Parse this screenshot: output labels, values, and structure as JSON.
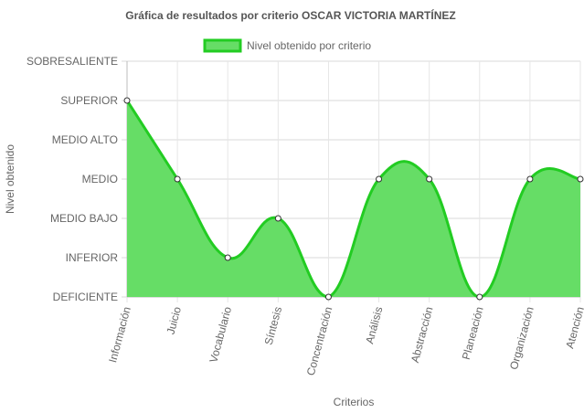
{
  "chart_data": {
    "type": "area",
    "title": "Gráfica de resultados por criterio OSCAR VICTORIA MARTÍNEZ",
    "xlabel": "Criterios",
    "ylabel": "Nivel obtenido",
    "y_levels": [
      "DEFICIENTE",
      "INFERIOR",
      "MEDIO BAJO",
      "MEDIO",
      "MEDIO ALTO",
      "SUPERIOR",
      "SOBRESALIENTE"
    ],
    "categories": [
      "Información",
      "Juicio",
      "Vocabulario",
      "Síntesis",
      "Concentración",
      "Análisis",
      "Abstracción",
      "Planeación",
      "Organización",
      "Atención"
    ],
    "series": [
      {
        "name": "Nivel obtenido por criterio",
        "values": [
          "SUPERIOR",
          "MEDIO",
          "INFERIOR",
          "MEDIO BAJO",
          "DEFICIENTE",
          "MEDIO",
          "MEDIO",
          "DEFICIENTE",
          "MEDIO",
          "MEDIO"
        ]
      }
    ],
    "legend_position": "top",
    "grid": true,
    "colors": {
      "line": "#22cc22",
      "fill": "#66dd66",
      "point_fill": "#ffffff",
      "point_stroke": "#333333"
    }
  }
}
